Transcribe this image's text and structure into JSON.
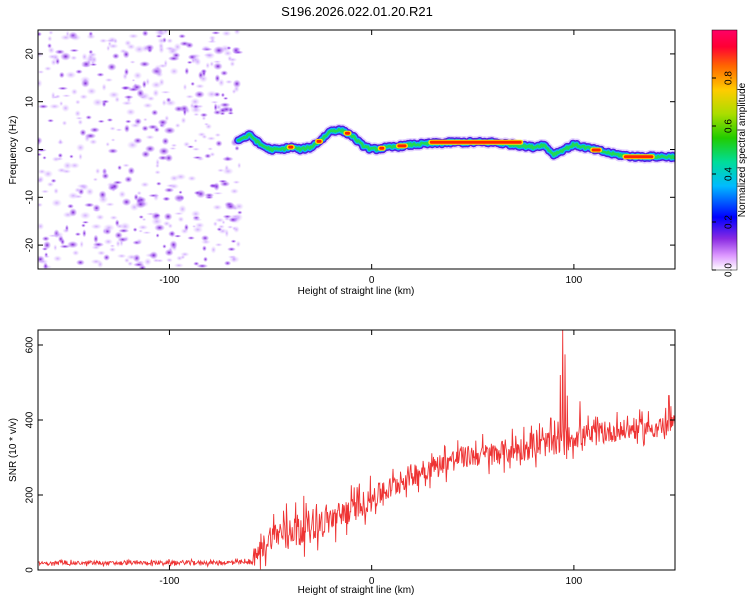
{
  "title": "S196.2026.022.01.20.R21",
  "colors": {
    "line": "#ee3333",
    "axis": "#000000",
    "background": "#ffffff"
  },
  "chart_data": [
    {
      "type": "heatmap",
      "name": "spectrogram",
      "xlabel": "Height of straight line (km)",
      "ylabel": "Frequency (Hz)",
      "xlim": [
        -165,
        150
      ],
      "ylim": [
        -25,
        25
      ],
      "xticks": [
        -100,
        0,
        100
      ],
      "xtick_labels": [
        "-100",
        "0",
        "100"
      ],
      "yticks": [
        -20,
        -10,
        0,
        10,
        20
      ],
      "ytick_labels": [
        "-20",
        "-10",
        "0",
        "10",
        "20"
      ],
      "noise_region_x": [
        -165,
        -65
      ],
      "signal_start_x": -66,
      "signal_trace": {
        "x": [
          -66,
          -60,
          -55,
          -50,
          -45,
          -40,
          -35,
          -30,
          -25,
          -20,
          -15,
          -10,
          -5,
          0,
          10,
          20,
          40,
          60,
          80,
          85,
          90,
          95,
          100,
          110,
          120,
          130,
          140,
          150
        ],
        "freq": [
          2,
          3,
          1,
          0,
          0,
          0.5,
          0,
          0.5,
          2,
          4,
          4,
          3,
          1,
          0,
          0.5,
          1,
          1.5,
          1.5,
          0.5,
          1,
          -1,
          0,
          1,
          0,
          -1,
          -1.5,
          -1.5,
          -1.5
        ]
      },
      "colorbar": {
        "label": "Normalized spectral amplitude",
        "range": [
          0,
          1
        ],
        "ticks": [
          0.0,
          0.2,
          0.4,
          0.6,
          0.8
        ],
        "tick_labels": [
          "0.0",
          "0.2",
          "0.4",
          "0.6",
          "0.8"
        ]
      }
    },
    {
      "type": "line",
      "name": "snr",
      "xlabel": "Height of straight line (km)",
      "ylabel": "SNR (10 * v/v)",
      "xlim": [
        -165,
        150
      ],
      "ylim": [
        0,
        640
      ],
      "xticks": [
        -100,
        0,
        100
      ],
      "xtick_labels": [
        "-100",
        "0",
        "100"
      ],
      "yticks": [
        0,
        200,
        400,
        600
      ],
      "ytick_labels": [
        "0",
        "200",
        "400",
        "600"
      ],
      "trend": {
        "x": [
          -165,
          -60,
          -55,
          -50,
          -40,
          -30,
          -20,
          -10,
          0,
          10,
          20,
          30,
          40,
          50,
          60,
          70,
          80,
          90,
          100,
          110,
          120,
          130,
          140,
          150
        ],
        "y": [
          18,
          20,
          50,
          90,
          110,
          120,
          135,
          160,
          190,
          220,
          255,
          275,
          295,
          305,
          310,
          320,
          330,
          340,
          355,
          360,
          370,
          375,
          380,
          390
        ]
      },
      "noise_amplitude": {
        "x": [
          -165,
          -60,
          -55,
          -40,
          -20,
          0,
          40,
          80,
          100,
          150
        ],
        "amp": [
          6,
          8,
          45,
          60,
          55,
          45,
          40,
          50,
          45,
          35
        ]
      },
      "spikes": [
        {
          "x": 94.5,
          "y": 640
        },
        {
          "x": 95.5,
          "y": 575
        },
        {
          "x": 93.3,
          "y": 520
        },
        {
          "x": 96.7,
          "y": 465
        },
        {
          "x": 103,
          "y": 450
        },
        {
          "x": 147,
          "y": 465
        }
      ]
    }
  ]
}
